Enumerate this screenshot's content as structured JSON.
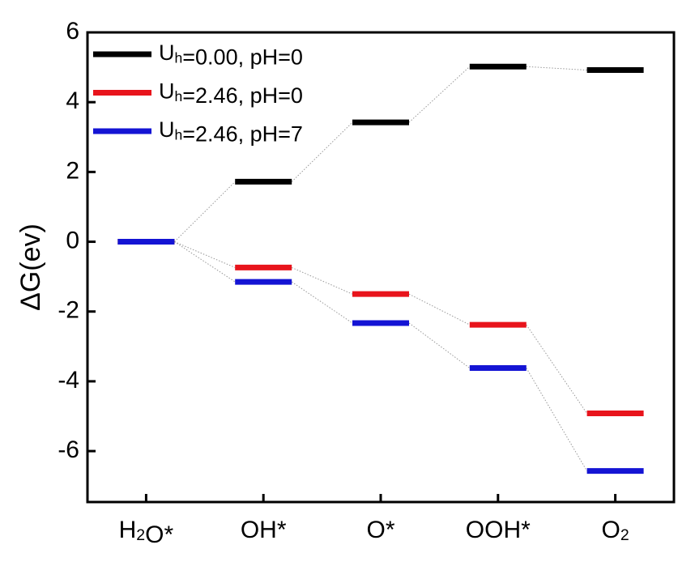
{
  "chart_data": {
    "type": "levels",
    "y_label": "ΔG(ev)",
    "categories": [
      "H2O*",
      "OH*",
      "O*",
      "OOH*",
      "O2"
    ],
    "series": [
      {
        "name": "Uh=0.00, pH=0",
        "color": "#000000",
        "values": [
          0,
          1.72,
          3.42,
          5.02,
          4.92
        ]
      },
      {
        "name": "Uh=2.46, pH=0",
        "color": "#e8141c",
        "values": [
          0,
          -0.74,
          -1.5,
          -2.38,
          -4.92
        ]
      },
      {
        "name": "Uh=2.46, pH=7",
        "color": "#1414d4",
        "values": [
          0,
          -1.15,
          -2.33,
          -3.62,
          -6.57
        ]
      }
    ],
    "ylim": [
      -7.46,
      6
    ],
    "yticks": [
      -6,
      -4,
      -2,
      0,
      2,
      4,
      6
    ]
  }
}
